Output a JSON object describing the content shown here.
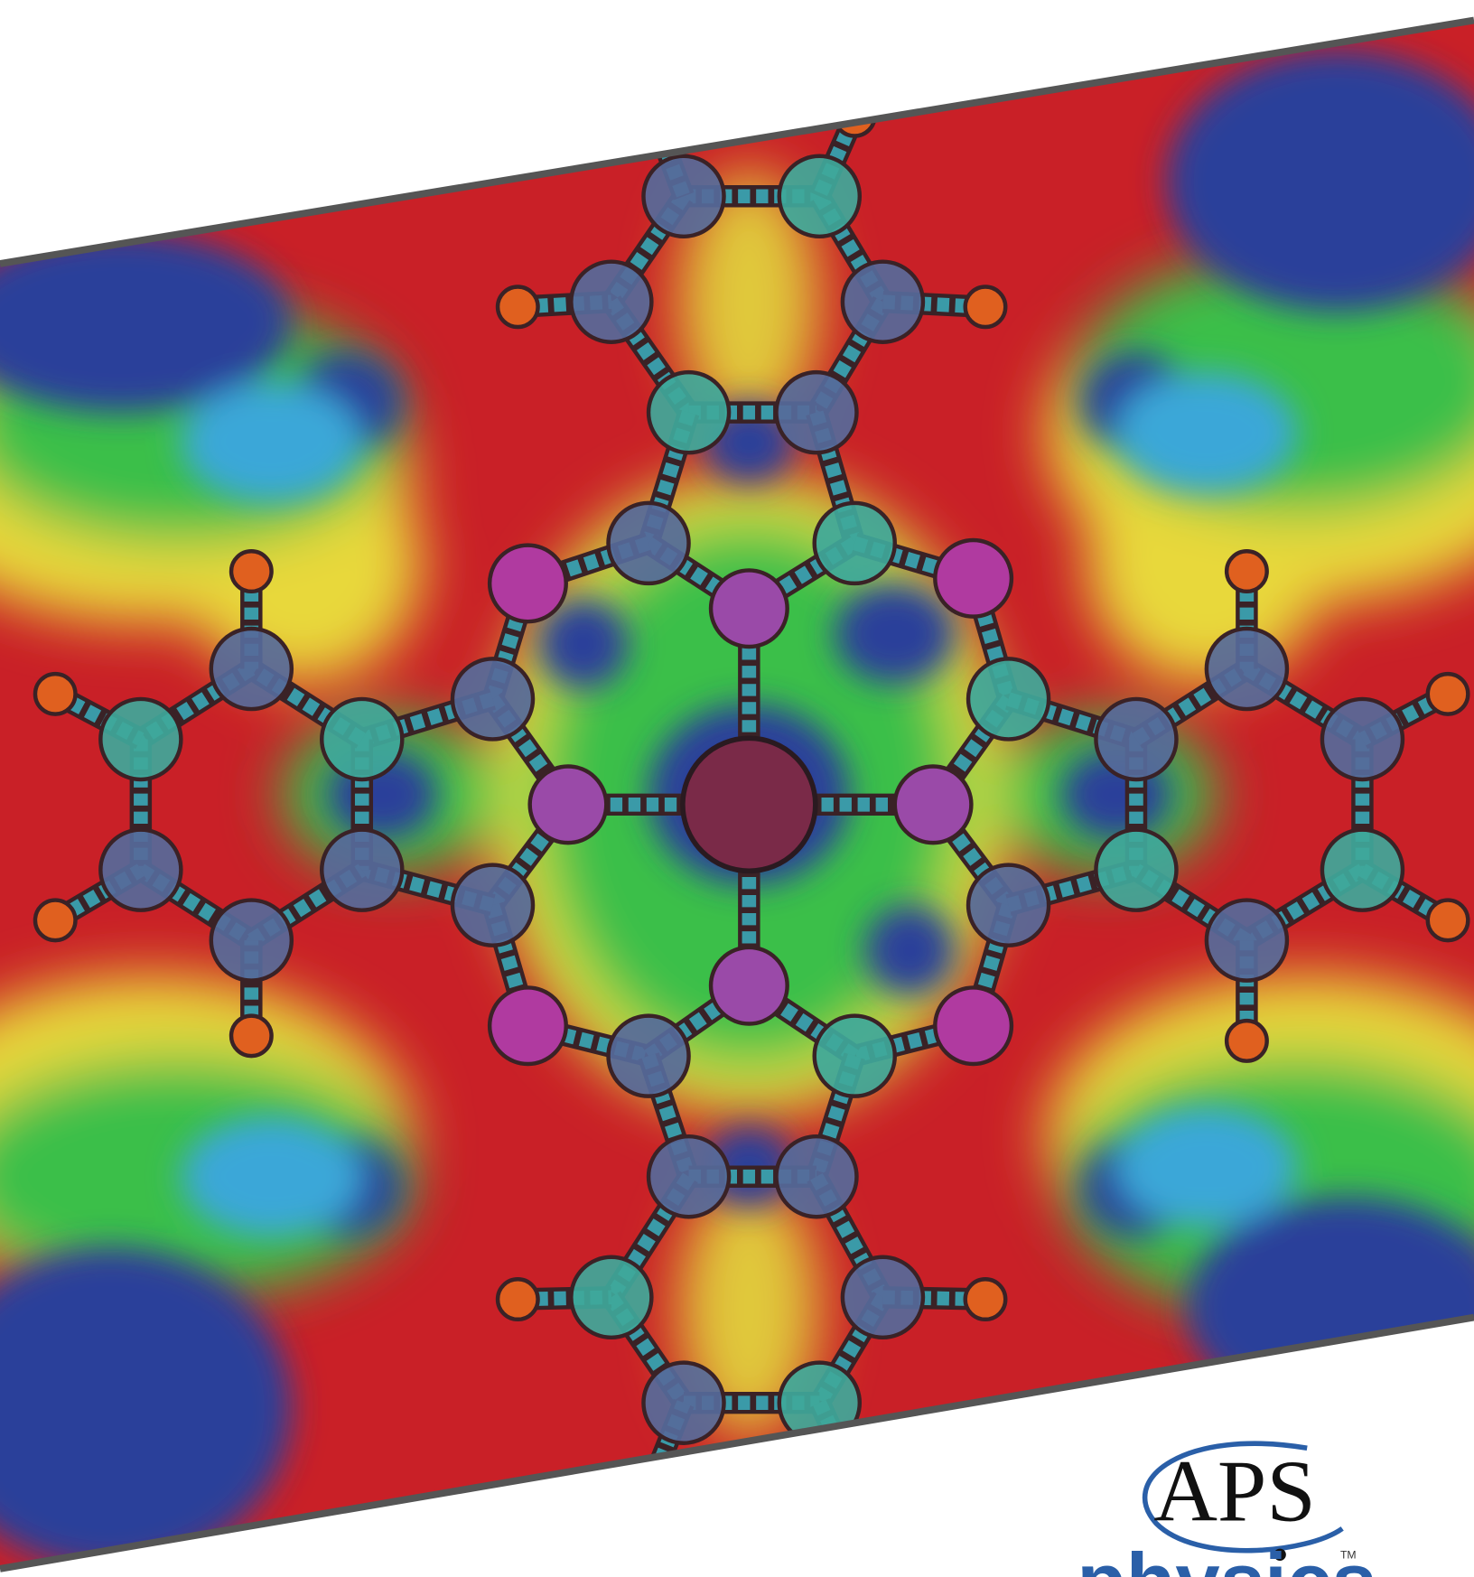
{
  "logo": {
    "text": "APS",
    "subtext": "physics",
    "trademark": "TM"
  }
}
